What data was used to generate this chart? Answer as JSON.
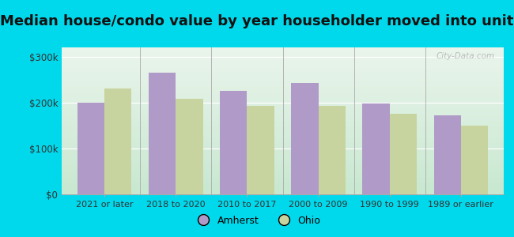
{
  "title": "Median house/condo value by year householder moved into unit",
  "categories": [
    "2021 or later",
    "2018 to 2020",
    "2010 to 2017",
    "2000 to 2009",
    "1990 to 1999",
    "1989 or earlier"
  ],
  "amherst_values": [
    200000,
    265000,
    225000,
    242000,
    198000,
    172000
  ],
  "ohio_values": [
    230000,
    208000,
    193000,
    192000,
    175000,
    150000
  ],
  "amherst_color": "#b09ac8",
  "ohio_color": "#c8d4a0",
  "background_outer": "#00d8eb",
  "background_inner_top": "#eaf5ec",
  "background_inner_bottom": "#c8e8d0",
  "yticks": [
    0,
    100000,
    200000,
    300000
  ],
  "ylabels": [
    "$0",
    "$100k",
    "$200k",
    "$300k"
  ],
  "ylim": [
    0,
    320000
  ],
  "bar_width": 0.38,
  "title_fontsize": 13,
  "legend_labels": [
    "Amherst",
    "Ohio"
  ],
  "watermark": "City-Data.com"
}
